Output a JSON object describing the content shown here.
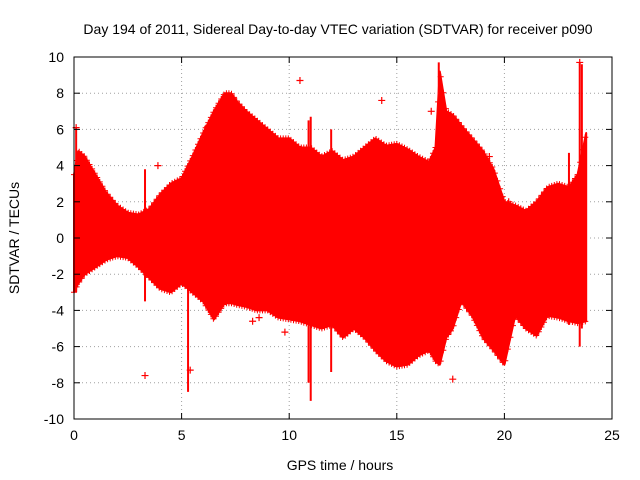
{
  "chart_data": {
    "type": "scatter",
    "title": "Day 194 of 2011, Sidereal Day-to-day VTEC variation (SDTVAR) for receiver p090",
    "xlabel": "GPS time / hours",
    "ylabel": "SDTVAR / TECUs",
    "xlim": [
      0,
      25
    ],
    "ylim": [
      -10,
      10
    ],
    "xticks": [
      0,
      5,
      10,
      15,
      20,
      25
    ],
    "yticks": [
      -10,
      -8,
      -6,
      -4,
      -2,
      0,
      2,
      4,
      6,
      8,
      10
    ],
    "grid": true,
    "marker": "plus",
    "series_color": "#ff0000",
    "envelope": {
      "x": [
        0.0,
        0.2,
        0.5,
        1.0,
        1.5,
        2.0,
        2.5,
        3.0,
        3.5,
        4.0,
        4.5,
        5.0,
        5.5,
        6.0,
        6.5,
        7.0,
        7.3,
        7.6,
        8.0,
        8.5,
        9.0,
        9.5,
        10.0,
        10.5,
        11.0,
        11.5,
        12.0,
        12.5,
        13.0,
        13.5,
        14.0,
        14.5,
        15.0,
        15.5,
        16.0,
        16.5,
        16.8,
        17.0,
        17.3,
        17.6,
        18.0,
        18.5,
        19.0,
        19.5,
        20.0,
        20.5,
        21.0,
        21.5,
        22.0,
        22.5,
        23.0,
        23.4,
        23.8
      ],
      "upper": [
        3.5,
        4.8,
        4.5,
        3.5,
        2.5,
        1.8,
        1.4,
        1.3,
        1.6,
        2.4,
        3.0,
        3.3,
        4.5,
        5.8,
        7.0,
        8.0,
        8.0,
        7.5,
        7.0,
        6.5,
        6.0,
        5.5,
        5.5,
        5.0,
        5.0,
        4.5,
        4.8,
        4.3,
        4.5,
        5.0,
        5.5,
        5.1,
        5.2,
        4.9,
        4.5,
        4.2,
        5.0,
        9.2,
        7.0,
        6.8,
        6.2,
        5.5,
        4.8,
        3.8,
        2.0,
        1.8,
        1.5,
        2.0,
        2.8,
        3.0,
        2.8,
        3.5,
        5.8
      ],
      "lower": [
        -3.0,
        -2.5,
        -2.0,
        -1.6,
        -1.2,
        -1.0,
        -1.1,
        -1.6,
        -2.2,
        -2.8,
        -3.0,
        -2.5,
        -3.0,
        -3.5,
        -4.5,
        -3.6,
        -3.6,
        -3.7,
        -3.8,
        -4.0,
        -4.0,
        -4.4,
        -4.5,
        -4.6,
        -4.8,
        -5.0,
        -4.8,
        -5.5,
        -5.0,
        -5.5,
        -6.2,
        -6.8,
        -7.1,
        -7.0,
        -6.5,
        -6.2,
        -6.8,
        -7.0,
        -5.5,
        -5.0,
        -3.5,
        -4.3,
        -5.5,
        -6.2,
        -7.0,
        -4.3,
        -5.0,
        -5.4,
        -4.3,
        -4.4,
        -4.6,
        -4.7,
        -4.6
      ]
    },
    "spikes": [
      {
        "x": 0.1,
        "low": -3.0,
        "high": 6.1
      },
      {
        "x": 3.3,
        "low": -3.5,
        "high": 3.8
      },
      {
        "x": 5.3,
        "low": -8.5,
        "high": 3.2
      },
      {
        "x": 6.1,
        "low": -2.8,
        "high": 6.2
      },
      {
        "x": 10.9,
        "low": -8.0,
        "high": 6.5
      },
      {
        "x": 11.0,
        "low": -9.0,
        "high": 6.7
      },
      {
        "x": 11.95,
        "low": -7.4,
        "high": 6.0
      },
      {
        "x": 16.95,
        "low": -6.5,
        "high": 9.7
      },
      {
        "x": 23.0,
        "low": -4.8,
        "high": 4.7
      },
      {
        "x": 23.5,
        "low": -6.0,
        "high": 9.7
      },
      {
        "x": 23.6,
        "low": -5.0,
        "high": 9.6
      }
    ],
    "outliers": [
      {
        "x": 0.1,
        "y": 6.1
      },
      {
        "x": 3.3,
        "y": -7.6
      },
      {
        "x": 3.9,
        "y": 4.0
      },
      {
        "x": 5.4,
        "y": -7.3
      },
      {
        "x": 8.3,
        "y": -4.6
      },
      {
        "x": 8.6,
        "y": -4.4
      },
      {
        "x": 9.8,
        "y": -5.2
      },
      {
        "x": 10.5,
        "y": 8.7
      },
      {
        "x": 14.3,
        "y": 7.6
      },
      {
        "x": 16.6,
        "y": 7.0
      },
      {
        "x": 17.6,
        "y": -7.8
      },
      {
        "x": 19.3,
        "y": 4.5
      },
      {
        "x": 20.2,
        "y": 2.0
      },
      {
        "x": 23.5,
        "y": 9.7
      }
    ]
  }
}
